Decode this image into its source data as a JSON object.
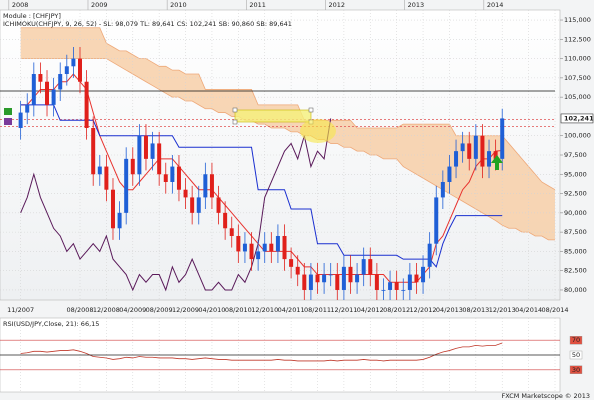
{
  "chart_data": {
    "type": "candlestick",
    "title": "Module : [CHFJPY]",
    "legend_text": "ICHIMOKU(CHFJPY, 9, 26, 52) - SL: 98,079  TL: 89,641  CS: 102,241  SB: 90,860  SB: 89,641",
    "footer": "FXCM Marketscope © 2013",
    "top_labels": [
      "2008",
      "2009",
      "2010",
      "2011",
      "2012",
      "2013",
      "2014"
    ],
    "categories": [
      "11/2007",
      null,
      null,
      null,
      null,
      null,
      null,
      null,
      null,
      "08/2008",
      null,
      null,
      null,
      "12/2008",
      null,
      null,
      null,
      "04/2009",
      null,
      null,
      null,
      "08/2009",
      null,
      null,
      null,
      "12/2009",
      null,
      null,
      null,
      "04/2010",
      null,
      null,
      null,
      "08/2010",
      null,
      null,
      null,
      "12/2010",
      null,
      null,
      null,
      "04/2011",
      null,
      null,
      null,
      "08/2011",
      null,
      null,
      null,
      "12/2011",
      null,
      null,
      null,
      "04/2012",
      null,
      null,
      null,
      "08/2012",
      null,
      null,
      null,
      "12/2012",
      null,
      null,
      null,
      "04/2013",
      null,
      null,
      null,
      "08/2013",
      null,
      null,
      null,
      "12/2013",
      null,
      null,
      null,
      "04/2014",
      null,
      null,
      null,
      "08/2014"
    ],
    "open": [
      101,
      103,
      104,
      108,
      107,
      104,
      106,
      108,
      109,
      110,
      107,
      101,
      95,
      96,
      93,
      88,
      90,
      97,
      95,
      100,
      97,
      99,
      95,
      94,
      96,
      93,
      92,
      90,
      92,
      95,
      92,
      90,
      88,
      87,
      85,
      86,
      84,
      85,
      86,
      85,
      87,
      84,
      83,
      82,
      80,
      82,
      81,
      82,
      82,
      80,
      83,
      81,
      82,
      84,
      82,
      80,
      80,
      81,
      80,
      80,
      82,
      81,
      83,
      86,
      92,
      94,
      96,
      98,
      99,
      97,
      100,
      96,
      98,
      97,
      null,
      null,
      null,
      null,
      null,
      null,
      null,
      null
    ],
    "high": [
      104.5,
      105.5,
      109.5,
      109.5,
      108.5,
      107.5,
      109.5,
      110.5,
      111.5,
      111.5,
      108.5,
      102.5,
      97.5,
      97.5,
      94.5,
      91.5,
      98.5,
      98.5,
      101.5,
      101.5,
      100.5,
      100.5,
      96.5,
      97.5,
      97.5,
      94.5,
      93.5,
      93.5,
      96.5,
      96.5,
      93.5,
      91.5,
      89.5,
      88.5,
      87.5,
      87.5,
      86.5,
      87.5,
      87.5,
      88.5,
      88.5,
      85.5,
      84.5,
      83.5,
      83.5,
      83.5,
      83.5,
      83.5,
      83.5,
      84.5,
      84.5,
      83.5,
      85.5,
      85.5,
      83.5,
      81.5,
      82.5,
      82.5,
      81.5,
      83.5,
      83.5,
      84.5,
      87.5,
      93.5,
      95.5,
      97.5,
      99.5,
      100.5,
      100.5,
      101.5,
      101.5,
      99.5,
      99.5,
      103.5,
      null,
      null,
      null,
      null,
      null,
      null,
      null,
      null
    ],
    "low": [
      99.5,
      101.5,
      102.5,
      105.5,
      102.5,
      102.5,
      104.5,
      106.5,
      107.5,
      105.5,
      99.5,
      93.5,
      93.5,
      91.5,
      86.5,
      86.5,
      88.5,
      93.5,
      93.5,
      95.5,
      95.5,
      93.5,
      92.5,
      92.5,
      91.5,
      90.5,
      88.5,
      88.5,
      90.5,
      90.5,
      88.5,
      86.5,
      85.5,
      83.5,
      83.5,
      82.5,
      82.5,
      83.5,
      83.5,
      83.5,
      82.5,
      81.5,
      80.5,
      78.5,
      78.5,
      79.5,
      79.5,
      80.5,
      78.5,
      78.5,
      79.5,
      79.5,
      80.5,
      80.5,
      78.5,
      78.5,
      78.5,
      78.5,
      78.5,
      78.5,
      79.5,
      79.5,
      81.5,
      84.5,
      90.5,
      92.5,
      94.5,
      96.5,
      95.5,
      95.5,
      94.5,
      94.5,
      95.5,
      95.5,
      null,
      null,
      null,
      null,
      null,
      null,
      null,
      null
    ],
    "close": [
      103,
      104,
      108,
      107,
      104,
      106,
      108,
      109,
      110,
      107,
      101,
      95,
      96,
      93,
      88,
      90,
      97,
      95,
      100,
      97,
      99,
      95,
      94,
      96,
      93,
      92,
      90,
      92,
      95,
      92,
      90,
      88,
      87,
      85,
      86,
      84,
      85,
      86,
      85,
      87,
      84,
      83,
      82,
      80,
      82,
      81,
      82,
      82,
      80,
      83,
      81,
      82,
      84,
      82,
      80,
      80,
      81,
      80,
      80,
      82,
      81,
      83,
      86,
      92,
      94,
      96,
      98,
      99,
      97,
      100,
      96,
      98,
      97,
      102.241,
      null,
      null,
      null,
      null,
      null,
      null,
      null,
      null
    ],
    "last_label": "102,241",
    "up_color": "#1f5fd6",
    "down_color": "#e0201b",
    "series": [
      {
        "color": "#e8322e",
        "values": [
          104,
          104,
          105,
          106,
          106,
          106,
          107,
          107,
          108,
          107,
          106,
          103,
          100,
          98,
          96,
          94,
          93,
          93,
          94,
          95,
          96,
          97,
          97,
          97,
          96,
          95,
          94,
          93,
          93,
          93,
          92,
          91,
          90,
          89,
          88,
          87,
          86,
          85,
          85,
          85,
          85,
          85,
          84,
          83,
          83,
          82,
          82,
          82,
          82,
          82,
          82,
          82,
          82,
          82,
          82,
          82,
          81,
          81,
          81,
          81,
          81,
          82,
          83,
          86,
          87,
          89,
          91,
          93,
          94,
          96,
          97,
          97,
          98,
          98.079,
          null,
          null,
          null,
          null,
          null,
          null,
          null,
          null
        ]
      },
      {
        "color": "#1a2fd0",
        "values": [
          104,
          104,
          104,
          104,
          104,
          104,
          102,
          102,
          102,
          102,
          102,
          102,
          100,
          100,
          100,
          100,
          100,
          100,
          100,
          100,
          100,
          100,
          100,
          100,
          98.5,
          98.5,
          98.5,
          98.5,
          98.5,
          98.5,
          98.5,
          98.5,
          98.5,
          98.5,
          98.5,
          98.5,
          93,
          93,
          93,
          93,
          93,
          90.5,
          90.5,
          90.5,
          90.5,
          86,
          86,
          86,
          86,
          84.5,
          84.5,
          84.5,
          84.5,
          84.5,
          84.5,
          84.5,
          84.5,
          84.5,
          84,
          84,
          84,
          84,
          84,
          83,
          86,
          88,
          89.641,
          89.641,
          89.641,
          89.641,
          89.641,
          89.641,
          89.641,
          89.641,
          null,
          null,
          null,
          null,
          null,
          null,
          null,
          null
        ]
      },
      {
        "color": "#5a1a5a",
        "values": [
          90,
          92,
          95,
          92,
          90,
          88,
          87,
          85,
          86,
          84,
          85,
          86,
          85,
          87,
          84,
          83,
          82,
          80,
          82,
          81,
          82,
          82,
          80,
          83,
          81,
          82,
          84,
          82,
          80,
          80,
          81,
          80,
          80,
          82,
          81,
          83,
          86,
          92,
          94,
          96,
          98,
          99,
          97,
          100,
          96,
          98,
          97,
          102.241,
          null,
          null,
          null,
          null,
          null,
          null,
          null,
          null,
          null,
          null,
          null,
          null,
          null,
          null,
          null,
          null,
          null,
          null,
          null,
          null,
          null,
          null,
          null,
          null,
          null,
          null,
          null,
          null,
          null,
          null,
          null,
          null,
          null,
          null
        ]
      }
    ],
    "cloud": {
      "color": "#f7cfa8",
      "edge_color": "#eea878",
      "upper": [
        114,
        114,
        114,
        114,
        114,
        114,
        114,
        114,
        114,
        114,
        114,
        114,
        114,
        112,
        111.5,
        111,
        111,
        110.5,
        110,
        110,
        109.5,
        109,
        109,
        108.5,
        108.5,
        108,
        108,
        108,
        106,
        106,
        106,
        106,
        106,
        106,
        106,
        106,
        104,
        104,
        104,
        104,
        104,
        104,
        104,
        102,
        102,
        102,
        102,
        102,
        102,
        102,
        102,
        101,
        101,
        101,
        101,
        101,
        101,
        101,
        101.5,
        101.5,
        101.5,
        101.5,
        101.5,
        101.5,
        101.5,
        101.5,
        100,
        100,
        100,
        100,
        100,
        100,
        100,
        100,
        99,
        98,
        97,
        96,
        95,
        94,
        93.5,
        93
      ],
      "lower": [
        110,
        110,
        110,
        110,
        110,
        110,
        110,
        110,
        110,
        110,
        110,
        110,
        110,
        110,
        109.5,
        109,
        108.5,
        108,
        107.5,
        107,
        106.5,
        106,
        105.5,
        105,
        105,
        104.5,
        104.5,
        104,
        103.5,
        103.5,
        103,
        103,
        102.5,
        102.5,
        102,
        102,
        101.5,
        101.5,
        101,
        101,
        101,
        100.5,
        100.5,
        100,
        100,
        99.5,
        99.5,
        99,
        99,
        98.5,
        98.5,
        98,
        98,
        97.5,
        97.5,
        97,
        97,
        97,
        96,
        95.5,
        95,
        94.5,
        94,
        93.5,
        93,
        92.5,
        92,
        91.5,
        91,
        90.5,
        90,
        89.5,
        89,
        88.4,
        88,
        88,
        87.5,
        87.5,
        87,
        87,
        86.5,
        86.5
      ]
    },
    "reference_lines": [
      {
        "value": 105.8,
        "color": "#111111"
      },
      {
        "value": 102.1,
        "color": "#e05050"
      },
      {
        "value": 101.2,
        "color": "#e05050"
      }
    ],
    "ylim": [
      78.7,
      116.3
    ],
    "yticks": [
      {
        "value": 80,
        "label": "80,000"
      },
      {
        "value": 82.5,
        "label": "82,500"
      },
      {
        "value": 85,
        "label": "85,000"
      },
      {
        "value": 87.5,
        "label": "87,500"
      },
      {
        "value": 90,
        "label": "90,000"
      },
      {
        "value": 92.5,
        "label": "92,500"
      },
      {
        "value": 95,
        "label": "95,000"
      },
      {
        "value": 97.5,
        "label": "97,500"
      },
      {
        "value": 100,
        "label": "100,000"
      },
      {
        "value": 105,
        "label": "105,000"
      },
      {
        "value": 107.5,
        "label": "107,500"
      },
      {
        "value": 110,
        "label": "110,000"
      },
      {
        "value": 112.5,
        "label": "112,500"
      },
      {
        "value": 115,
        "label": "115,000"
      }
    ],
    "grid": true,
    "rsi": {
      "title": "RSI(USD/JPY,Close, 21): 66,15",
      "color": "#c0392b",
      "values": [
        52,
        53,
        55,
        55,
        54,
        55,
        56,
        56,
        57,
        55,
        52,
        48,
        47,
        46,
        44,
        45,
        47,
        46,
        48,
        47,
        47,
        46,
        46,
        46,
        45,
        45,
        44,
        45,
        46,
        45,
        44,
        44,
        43,
        43,
        43,
        43,
        43,
        43,
        43,
        44,
        43,
        43,
        42,
        42,
        42,
        42,
        42,
        43,
        42,
        43,
        43,
        43,
        44,
        43,
        43,
        42,
        43,
        43,
        43,
        43,
        43,
        44,
        47,
        51,
        54,
        56,
        59,
        61,
        61,
        63,
        62,
        63,
        63,
        66.15,
        null,
        null,
        null,
        null,
        null,
        null,
        null,
        null
      ],
      "ylim": [
        0,
        100
      ],
      "yticks": [
        30,
        50,
        70
      ]
    }
  }
}
